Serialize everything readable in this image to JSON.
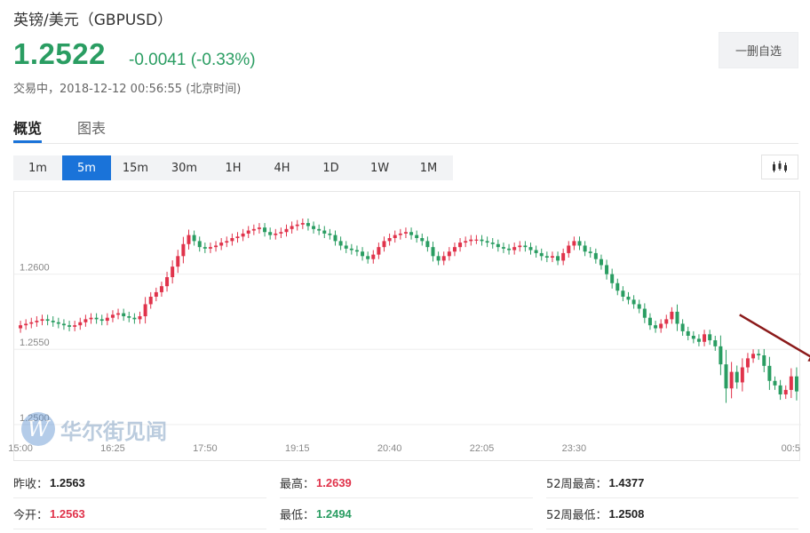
{
  "header": {
    "title": "英镑/美元（GBPUSD）",
    "price": "1.2522",
    "change": "-0.0041 (-0.33%)",
    "status": "交易中，2018-12-12 00:56:55 (北京时间)",
    "remove_label": "一删自选"
  },
  "tabs": [
    {
      "label": "概览"
    },
    {
      "label": "图表"
    }
  ],
  "periods": [
    {
      "label": "1m"
    },
    {
      "label": "5m"
    },
    {
      "label": "15m"
    },
    {
      "label": "30m"
    },
    {
      "label": "1H"
    },
    {
      "label": "4H"
    },
    {
      "label": "1D"
    },
    {
      "label": "1W"
    },
    {
      "label": "1M"
    }
  ],
  "active_period": "5m",
  "watermark": {
    "glyph": "W",
    "text": "华尔街见闻"
  },
  "colors": {
    "up": "#e0334b",
    "down": "#2a9d62",
    "accent": "#1a73d9",
    "arrow": "#8b1a1a"
  },
  "chart_data": {
    "type": "candlestick",
    "title": "",
    "xlabel": "",
    "ylabel": "",
    "ylim": [
      1.2494,
      1.265
    ],
    "y_ticks": [
      "1.2500",
      "1.2550",
      "1.2600"
    ],
    "x_ticks": [
      "15:00",
      "16:25",
      "17:50",
      "19:15",
      "20:40",
      "22:05",
      "23:30",
      "00:5"
    ],
    "close_series": [
      1.2566,
      1.2567,
      1.2568,
      1.2569,
      1.257,
      1.2569,
      1.2568,
      1.2567,
      1.2566,
      1.2565,
      1.2566,
      1.2568,
      1.257,
      1.2571,
      1.257,
      1.2569,
      1.2571,
      1.2573,
      1.2574,
      1.2572,
      1.2571,
      1.257,
      1.2572,
      1.258,
      1.2585,
      1.2588,
      1.2592,
      1.2598,
      1.2605,
      1.2612,
      1.262,
      1.2626,
      1.2622,
      1.2618,
      1.2617,
      1.2618,
      1.2619,
      1.2621,
      1.2622,
      1.2624,
      1.2625,
      1.2627,
      1.2629,
      1.263,
      1.2631,
      1.2628,
      1.2626,
      1.2627,
      1.2628,
      1.263,
      1.2632,
      1.2633,
      1.2634,
      1.2632,
      1.263,
      1.2629,
      1.2627,
      1.2626,
      1.2622,
      1.2619,
      1.2617,
      1.2616,
      1.2615,
      1.2612,
      1.261,
      1.2613,
      1.2618,
      1.2622,
      1.2624,
      1.2626,
      1.2627,
      1.2628,
      1.2626,
      1.2624,
      1.2622,
      1.2618,
      1.2612,
      1.2609,
      1.2612,
      1.2615,
      1.2618,
      1.2621,
      1.2622,
      1.2623,
      1.2623,
      1.2622,
      1.2621,
      1.262,
      1.2618,
      1.2617,
      1.2616,
      1.2618,
      1.2619,
      1.2618,
      1.2616,
      1.2614,
      1.2612,
      1.2611,
      1.2612,
      1.2609,
      1.2614,
      1.2619,
      1.2622,
      1.2619,
      1.2615,
      1.2614,
      1.261,
      1.2606,
      1.26,
      1.2594,
      1.2589,
      1.2585,
      1.2583,
      1.258,
      1.2577,
      1.2571,
      1.2566,
      1.2564,
      1.2567,
      1.257,
      1.2575,
      1.2567,
      1.2562,
      1.2559,
      1.2557,
      1.2555,
      1.256,
      1.2556,
      1.2552,
      1.254,
      1.2524,
      1.2535,
      1.2528,
      1.2538,
      1.2544,
      1.2547,
      1.2546,
      1.2539,
      1.2529,
      1.2526,
      1.252,
      1.2523,
      1.2532,
      1.2522
    ],
    "summary": [
      {
        "label": "昨收：",
        "value": "1.2563",
        "tone": "dark"
      },
      {
        "label": "最高：",
        "value": "1.2639",
        "tone": "red"
      },
      {
        "label": "52周最高：",
        "value": "1.4377",
        "tone": "dark"
      },
      {
        "label": "今开：",
        "value": "1.2563",
        "tone": "red"
      },
      {
        "label": "最低：",
        "value": "1.2494",
        "tone": "green"
      },
      {
        "label": "52周最低：",
        "value": "1.2508",
        "tone": "dark"
      }
    ]
  }
}
